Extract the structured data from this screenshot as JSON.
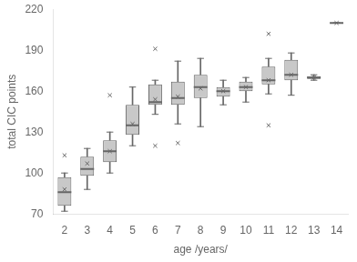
{
  "chart_data": {
    "type": "box",
    "xlabel": "age /years/",
    "ylabel": "total CIC points",
    "categories": [
      "2",
      "3",
      "4",
      "5",
      "6",
      "7",
      "8",
      "9",
      "10",
      "11",
      "12",
      "13",
      "14"
    ],
    "whislo": [
      72,
      88,
      100,
      120,
      143,
      136,
      134,
      150,
      152,
      158,
      157,
      168,
      210
    ],
    "q1": [
      76,
      98,
      108,
      128,
      150,
      150,
      155,
      156,
      160,
      165,
      168,
      169,
      210
    ],
    "med": [
      86,
      103,
      116,
      135,
      152,
      155,
      163,
      160,
      163,
      168,
      172,
      170,
      210
    ],
    "q3": [
      97,
      112,
      124,
      150,
      165,
      167,
      172,
      163,
      167,
      178,
      183,
      171,
      210
    ],
    "whishi": [
      100,
      118,
      130,
      163,
      168,
      182,
      184,
      168,
      170,
      184,
      188,
      172,
      210
    ],
    "mean": [
      88,
      107,
      116,
      136,
      154,
      156,
      162,
      160,
      163,
      168,
      172,
      170,
      210
    ],
    "fliers": [
      [
        113
      ],
      [],
      [
        157
      ],
      [],
      [
        191,
        120
      ],
      [
        122
      ],
      [],
      [],
      [],
      [
        202,
        135
      ],
      [],
      [],
      []
    ],
    "color": "#c8c8c8",
    "marker": "x",
    "ylim": [
      70,
      220
    ],
    "yticks": [
      70,
      100,
      130,
      160,
      190,
      220
    ],
    "grid": false
  }
}
